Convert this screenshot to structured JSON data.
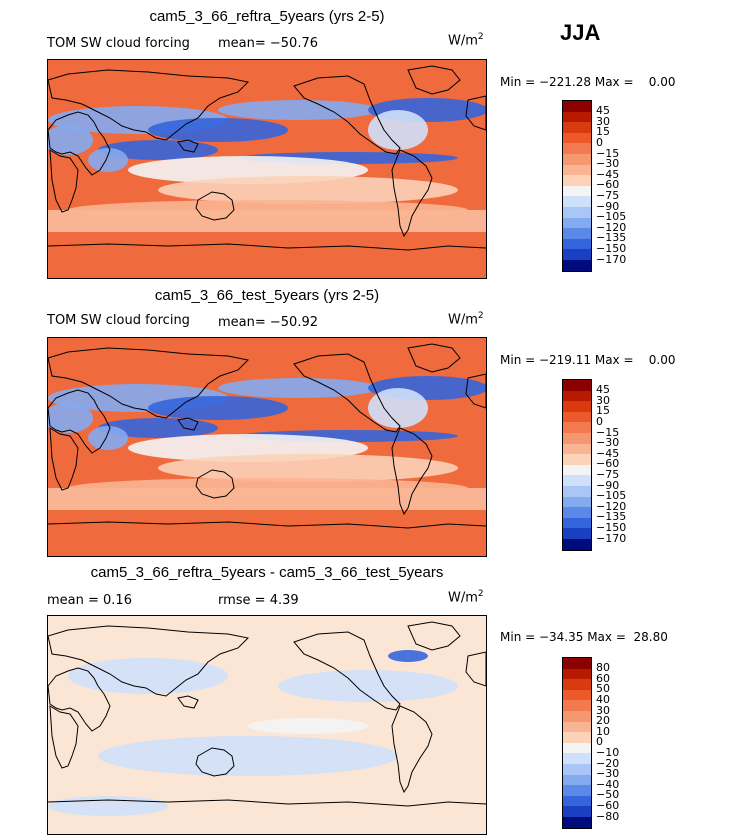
{
  "season": "JJA",
  "units": "W/m",
  "units_sup": "2",
  "panels": [
    {
      "title": "cam5_3_66_reftra_5years (yrs 2-5)",
      "left_label": "TOM SW cloud forcing",
      "stat1": "mean= −50.76",
      "stat2": "",
      "minmax": "Min = −221.28 Max =    0.00",
      "scale": "abs"
    },
    {
      "title": "cam5_3_66_test_5years (yrs 2-5)",
      "left_label": "TOM SW cloud forcing",
      "stat1": "mean= −50.92",
      "stat2": "",
      "minmax": "Min = −219.11 Max =    0.00",
      "scale": "abs"
    },
    {
      "title": "cam5_3_66_reftra_5years - cam5_3_66_test_5years",
      "left_label": "",
      "stat1": "mean =    0.16",
      "stat2": "rmse =    4.39",
      "minmax": "Min = −34.35 Max =  28.80",
      "scale": "diff"
    }
  ],
  "colorbars": {
    "abs": {
      "labels": [
        "45",
        "30",
        "15",
        "0",
        "−15",
        "−30",
        "−45",
        "−60",
        "−75",
        "−90",
        "−105",
        "−120",
        "−135",
        "−150",
        "−170"
      ],
      "colors": [
        "#8b0000",
        "#b81a00",
        "#d93a0f",
        "#ec5a2c",
        "#f27a4e",
        "#f6986f",
        "#f9b593",
        "#fcd2b8",
        "#f4f4f4",
        "#cfe0fb",
        "#a9c6f6",
        "#84aaf0",
        "#5b89e8",
        "#3565dc",
        "#1a3fc0",
        "#000c7e"
      ]
    },
    "diff": {
      "labels": [
        "80",
        "60",
        "50",
        "40",
        "30",
        "20",
        "10",
        "0",
        "−10",
        "−20",
        "−30",
        "−40",
        "−50",
        "−60",
        "−80"
      ],
      "colors": [
        "#8b0000",
        "#b81a00",
        "#d93a0f",
        "#ec5a2c",
        "#f27a4e",
        "#f6986f",
        "#f9b593",
        "#fcd2b8",
        "#f4f4f4",
        "#cfe0fb",
        "#a9c6f6",
        "#84aaf0",
        "#5b89e8",
        "#3565dc",
        "#1a3fc0",
        "#000c7e"
      ]
    }
  },
  "map_colors": {
    "ocean_abs": "#ef6a3c",
    "ocean_diff": "#fbe6d6",
    "light": "#f9b593",
    "pale": "#fcd2b8",
    "white": "#f4f4f4",
    "blue1": "#cfe0fb",
    "blue2": "#84aaf0",
    "blue3": "#3565dc",
    "blue4": "#1a3fc0"
  }
}
